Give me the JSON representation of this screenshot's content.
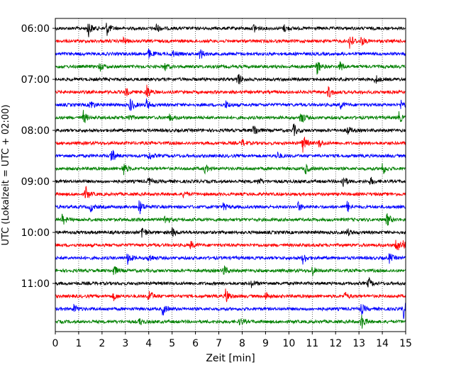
{
  "chart_data": {
    "type": "line",
    "title": "",
    "xlabel": "Zeit  [min]",
    "ylabel": "UTC (Lokalzeit = UTC + 02:00)",
    "xlim": [
      0,
      15
    ],
    "x_ticks": [
      "0",
      "1",
      "2",
      "3",
      "4",
      "5",
      "6",
      "7",
      "8",
      "9",
      "10",
      "11",
      "12",
      "13",
      "14",
      "15"
    ],
    "y_ticks": [
      "06:00",
      "07:00",
      "08:00",
      "09:00",
      "10:00",
      "11:00"
    ],
    "grid": "vertical dotted at each minute",
    "trace_interval_min": 15,
    "start_time": "06:00",
    "trace_count": 24,
    "colors_cycle": [
      "#000000",
      "#ff0000",
      "#0000ff",
      "#008000"
    ],
    "events": [
      {
        "trace": 0,
        "events": [
          [
            1.4,
            1.0
          ],
          [
            2.2,
            0.8
          ],
          [
            4.3,
            0.6
          ],
          [
            8.5,
            0.5
          ],
          [
            9.8,
            0.4
          ]
        ]
      },
      {
        "trace": 1,
        "events": [
          [
            2.9,
            0.4
          ],
          [
            12.6,
            1.0
          ],
          [
            13.1,
            0.5
          ]
        ]
      },
      {
        "trace": 2,
        "events": [
          [
            4.0,
            0.5
          ],
          [
            5.0,
            0.4
          ],
          [
            6.2,
            0.6
          ]
        ]
      },
      {
        "trace": 3,
        "events": [
          [
            1.9,
            0.5
          ],
          [
            4.7,
            0.4
          ],
          [
            11.2,
            0.9
          ],
          [
            12.2,
            0.6
          ]
        ]
      },
      {
        "trace": 4,
        "events": [
          [
            7.8,
            0.9
          ],
          [
            13.7,
            0.5
          ]
        ]
      },
      {
        "trace": 5,
        "events": [
          [
            3.0,
            0.5
          ],
          [
            3.9,
            0.9
          ],
          [
            11.7,
            0.7
          ]
        ]
      },
      {
        "trace": 6,
        "events": [
          [
            1.5,
            0.6
          ],
          [
            3.2,
            0.8
          ],
          [
            3.9,
            0.6
          ],
          [
            7.3,
            0.4
          ],
          [
            12.2,
            0.4
          ],
          [
            14.8,
            0.5
          ]
        ]
      },
      {
        "trace": 7,
        "events": [
          [
            1.2,
            0.7
          ],
          [
            3.1,
            0.5
          ],
          [
            4.9,
            0.4
          ],
          [
            10.5,
            0.9
          ],
          [
            14.7,
            0.6
          ]
        ]
      },
      {
        "trace": 8,
        "events": [
          [
            8.5,
            0.8
          ],
          [
            10.2,
            0.7
          ],
          [
            12.5,
            0.5
          ]
        ]
      },
      {
        "trace": 9,
        "events": [
          [
            8.0,
            0.4
          ],
          [
            10.6,
            1.0
          ],
          [
            11.3,
            0.5
          ]
        ]
      },
      {
        "trace": 10,
        "events": [
          [
            2.4,
            0.9
          ],
          [
            4.0,
            0.5
          ],
          [
            9.5,
            0.4
          ]
        ]
      },
      {
        "trace": 11,
        "events": [
          [
            2.9,
            0.8
          ],
          [
            6.4,
            0.5
          ],
          [
            10.7,
            0.6
          ],
          [
            14.0,
            0.7
          ]
        ]
      },
      {
        "trace": 12,
        "events": [
          [
            4.0,
            0.4
          ],
          [
            8.7,
            0.4
          ],
          [
            12.3,
            0.8
          ],
          [
            13.5,
            0.4
          ]
        ]
      },
      {
        "trace": 13,
        "events": [
          [
            1.3,
            0.8
          ],
          [
            5.5,
            0.4
          ]
        ]
      },
      {
        "trace": 14,
        "events": [
          [
            1.5,
            0.5
          ],
          [
            3.6,
            0.8
          ],
          [
            7.2,
            0.4
          ],
          [
            10.4,
            0.5
          ],
          [
            12.5,
            0.6
          ]
        ]
      },
      {
        "trace": 15,
        "events": [
          [
            0.3,
            0.6
          ],
          [
            4.7,
            0.6
          ],
          [
            14.2,
            0.8
          ]
        ]
      },
      {
        "trace": 16,
        "events": [
          [
            3.7,
            0.8
          ],
          [
            5.0,
            0.5
          ],
          [
            12.5,
            0.4
          ]
        ]
      },
      {
        "trace": 17,
        "events": [
          [
            5.8,
            0.4
          ],
          [
            14.6,
            1.0
          ],
          [
            14.9,
            0.6
          ]
        ]
      },
      {
        "trace": 18,
        "events": [
          [
            3.1,
            0.7
          ],
          [
            4.0,
            0.5
          ],
          [
            10.6,
            0.6
          ],
          [
            14.3,
            0.5
          ]
        ]
      },
      {
        "trace": 19,
        "events": [
          [
            2.5,
            0.6
          ],
          [
            7.2,
            0.6
          ],
          [
            11.0,
            0.5
          ]
        ]
      },
      {
        "trace": 20,
        "events": [
          [
            8.4,
            0.4
          ],
          [
            13.4,
            0.6
          ]
        ]
      },
      {
        "trace": 21,
        "events": [
          [
            2.5,
            0.4
          ],
          [
            4.0,
            0.8
          ],
          [
            7.3,
            0.9
          ],
          [
            9.0,
            0.5
          ],
          [
            12.4,
            0.4
          ]
        ]
      },
      {
        "trace": 22,
        "events": [
          [
            0.8,
            0.5
          ],
          [
            4.6,
            0.7
          ],
          [
            13.1,
            0.6
          ],
          [
            14.9,
            1.0
          ]
        ]
      },
      {
        "trace": 23,
        "events": [
          [
            3.6,
            0.4
          ],
          [
            7.9,
            0.4
          ],
          [
            13.1,
            0.9
          ]
        ]
      }
    ]
  }
}
